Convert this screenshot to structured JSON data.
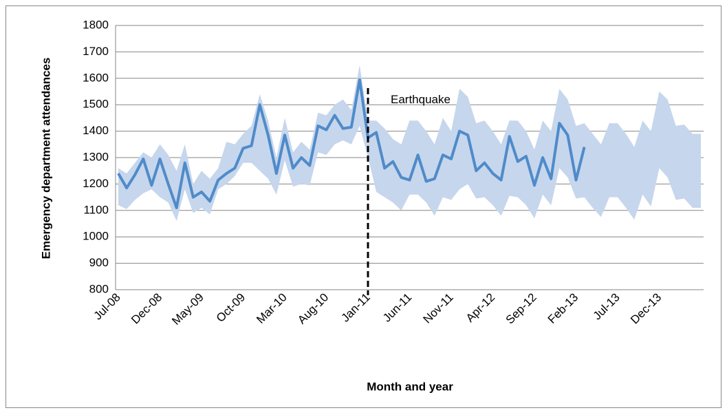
{
  "chart_data": {
    "type": "line",
    "x_label": "Month and year",
    "y_label": "Emergency department attendances",
    "categories": [
      "Jul-08",
      null,
      null,
      null,
      null,
      "Dec-08",
      null,
      null,
      null,
      null,
      "May-09",
      null,
      null,
      null,
      null,
      "Oct-09",
      null,
      null,
      null,
      null,
      "Mar-10",
      null,
      null,
      null,
      null,
      "Aug-10",
      null,
      null,
      null,
      null,
      "Jan-11",
      null,
      null,
      null,
      null,
      "Jun-11",
      null,
      null,
      null,
      null,
      "Nov-11",
      null,
      null,
      null,
      null,
      "Apr-12",
      null,
      null,
      null,
      null,
      "Sep-12",
      null,
      null,
      null,
      null,
      "Feb-13",
      null,
      null,
      null,
      null,
      "Jul-13",
      null,
      null,
      null,
      null,
      "Dec-13",
      null,
      null,
      null,
      null,
      null
    ],
    "values": [
      1240,
      1185,
      1235,
      1295,
      1195,
      1295,
      1200,
      1110,
      1280,
      1150,
      1170,
      1135,
      1215,
      1240,
      1260,
      1335,
      1345,
      1500,
      1385,
      1240,
      1385,
      1260,
      1300,
      1270,
      1420,
      1405,
      1460,
      1410,
      1415,
      1595,
      1375,
      1395,
      1260,
      1285,
      1225,
      1215,
      1310,
      1210,
      1220,
      1310,
      1295,
      1400,
      1385,
      1250,
      1280,
      1240,
      1215,
      1380,
      1285,
      1305,
      1195,
      1300,
      1220,
      1430,
      1385,
      1215,
      1340,
      null,
      null,
      null,
      null,
      null,
      null,
      null,
      null,
      null,
      null,
      null,
      null,
      null,
      null
    ],
    "color": "#4f8bc9",
    "band": {
      "color": "#c6d6ec",
      "upper": [
        1260,
        1240,
        1280,
        1320,
        1300,
        1350,
        1310,
        1250,
        1350,
        1200,
        1250,
        1220,
        1260,
        1360,
        1350,
        1390,
        1420,
        1540,
        1440,
        1300,
        1450,
        1320,
        1360,
        1330,
        1470,
        1460,
        1500,
        1520,
        1480,
        1650,
        1440,
        1440,
        1410,
        1370,
        1350,
        1440,
        1440,
        1400,
        1350,
        1450,
        1400,
        1560,
        1530,
        1430,
        1440,
        1400,
        1350,
        1440,
        1440,
        1400,
        1330,
        1440,
        1400,
        1560,
        1520,
        1420,
        1430,
        1390,
        1350,
        1430,
        1430,
        1390,
        1340,
        1440,
        1400,
        1550,
        1520,
        1420,
        1425,
        1390,
        1390
      ],
      "lower": [
        1120,
        1105,
        1140,
        1165,
        1180,
        1150,
        1130,
        1060,
        1180,
        1090,
        1110,
        1085,
        1180,
        1200,
        1230,
        1280,
        1280,
        1250,
        1220,
        1160,
        1290,
        1190,
        1200,
        1195,
        1320,
        1310,
        1350,
        1365,
        1350,
        1420,
        1300,
        1170,
        1150,
        1130,
        1100,
        1160,
        1160,
        1130,
        1080,
        1150,
        1140,
        1180,
        1200,
        1145,
        1150,
        1120,
        1080,
        1155,
        1150,
        1120,
        1070,
        1160,
        1120,
        1260,
        1225,
        1145,
        1150,
        1110,
        1075,
        1150,
        1150,
        1110,
        1065,
        1160,
        1115,
        1260,
        1225,
        1140,
        1145,
        1110,
        1110
      ]
    },
    "annotation": {
      "text": "Earthquake",
      "x": "Jan-11"
    },
    "ylim": [
      800,
      1800
    ],
    "yticks": [
      800,
      900,
      1000,
      1100,
      1200,
      1300,
      1400,
      1500,
      1600,
      1700,
      1800
    ],
    "grid": true
  }
}
